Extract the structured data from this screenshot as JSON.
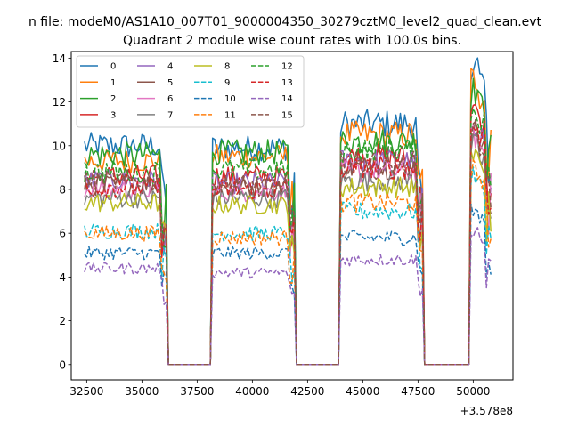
{
  "chart_data": {
    "type": "line",
    "suptitle": "n file: modeM0/AS1A10_007T01_9000004350_30279cztM0_level2_quad_clean.evt",
    "title": "Quadrant 2 module wise count rates with 100.0s bins.",
    "xlabel": "",
    "ylabel": "",
    "x_offset_label": "+3.578e8",
    "xlim": [
      31800,
      51800
    ],
    "ylim": [
      -0.7,
      14.3
    ],
    "x_ticks": [
      32500,
      35000,
      37500,
      40000,
      42500,
      45000,
      47500,
      50000
    ],
    "y_ticks": [
      0,
      2,
      4,
      6,
      8,
      10,
      12,
      14
    ],
    "segments": [
      [
        32400,
        36100
      ],
      [
        38200,
        41900
      ],
      [
        44000,
        47700
      ],
      [
        49900,
        50800
      ]
    ],
    "gap_value": 0,
    "legend_position": "upper-left",
    "legend_columns": 4,
    "series": [
      {
        "name": "0",
        "color": "#1f77b4",
        "dash": "solid",
        "levels": [
          10.0,
          9.9,
          11.0,
          13.0
        ]
      },
      {
        "name": "1",
        "color": "#ff7f0e",
        "dash": "solid",
        "levels": [
          9.3,
          9.5,
          10.5,
          12.3
        ]
      },
      {
        "name": "2",
        "color": "#2ca02c",
        "dash": "solid",
        "levels": [
          9.6,
          9.7,
          10.2,
          11.8
        ]
      },
      {
        "name": "3",
        "color": "#d62728",
        "dash": "solid",
        "levels": [
          8.6,
          8.6,
          9.5,
          10.8
        ]
      },
      {
        "name": "4",
        "color": "#9467bd",
        "dash": "solid",
        "levels": [
          8.4,
          8.3,
          9.3,
          10.4
        ]
      },
      {
        "name": "5",
        "color": "#8c564b",
        "dash": "solid",
        "levels": [
          8.2,
          8.1,
          9.0,
          10.1
        ]
      },
      {
        "name": "6",
        "color": "#e377c2",
        "dash": "solid",
        "levels": [
          8.0,
          7.9,
          8.8,
          9.8
        ]
      },
      {
        "name": "7",
        "color": "#7f7f7f",
        "dash": "solid",
        "levels": [
          7.6,
          7.6,
          8.4,
          9.4
        ]
      },
      {
        "name": "8",
        "color": "#bcbd22",
        "dash": "solid",
        "levels": [
          7.4,
          7.3,
          8.1,
          9.0
        ]
      },
      {
        "name": "9",
        "color": "#17becf",
        "dash": "dashed",
        "levels": [
          6.1,
          6.0,
          7.0,
          8.1
        ]
      },
      {
        "name": "10",
        "color": "#1f77b4",
        "dash": "dashed",
        "levels": [
          5.1,
          5.1,
          5.8,
          6.6
        ]
      },
      {
        "name": "11",
        "color": "#ff7f0e",
        "dash": "dashed",
        "levels": [
          6.0,
          5.8,
          7.4,
          8.4
        ]
      },
      {
        "name": "12",
        "color": "#2ca02c",
        "dash": "dashed",
        "levels": [
          8.8,
          8.9,
          9.8,
          11.0
        ]
      },
      {
        "name": "13",
        "color": "#d62728",
        "dash": "dashed",
        "levels": [
          8.1,
          8.0,
          9.0,
          10.2
        ]
      },
      {
        "name": "14",
        "color": "#9467bd",
        "dash": "dashed",
        "levels": [
          4.4,
          4.2,
          4.8,
          5.6
        ]
      },
      {
        "name": "15",
        "color": "#8c564b",
        "dash": "dashed",
        "levels": [
          8.4,
          8.2,
          9.2,
          10.0
        ]
      }
    ]
  }
}
